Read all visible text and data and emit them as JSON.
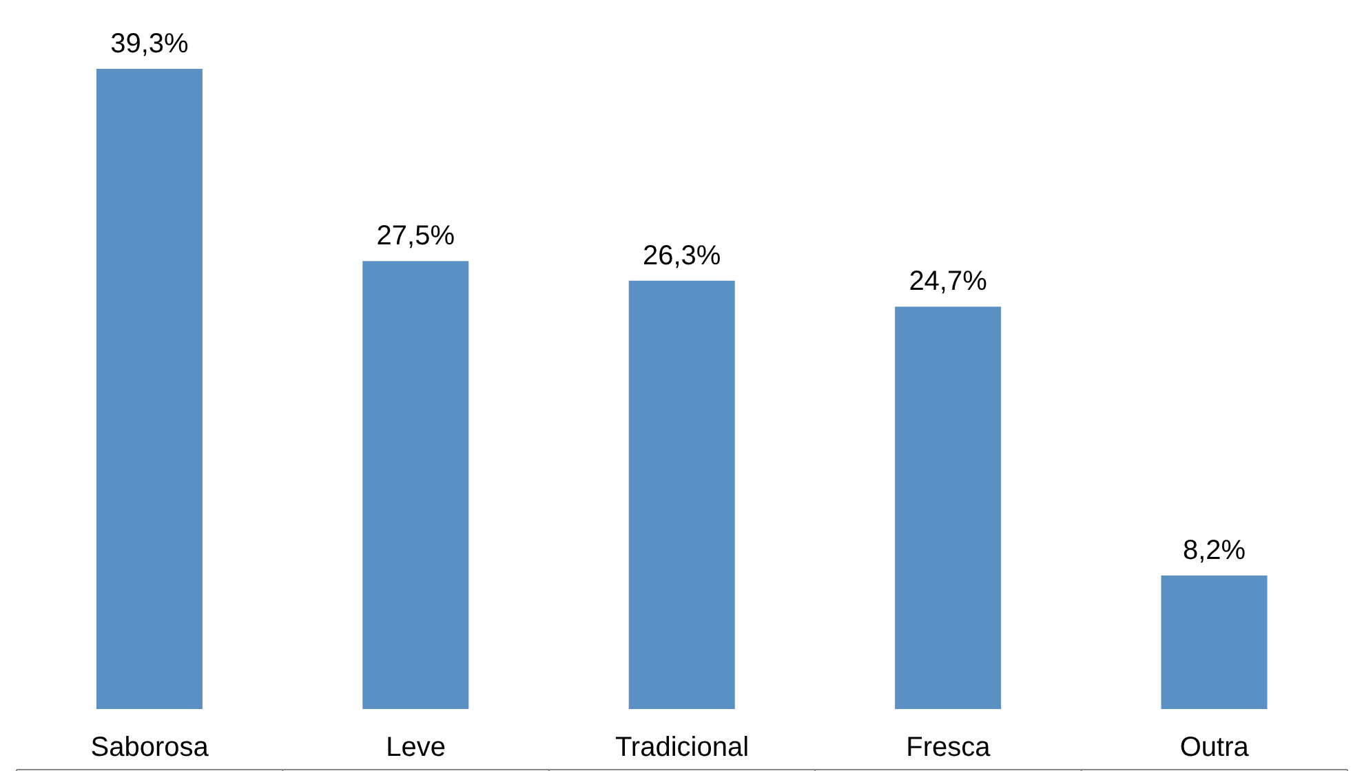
{
  "chart_data": {
    "type": "bar",
    "categories": [
      "Saborosa",
      "Leve",
      "Tradicional",
      "Fresca",
      "Outra"
    ],
    "values": [
      39.3,
      27.5,
      26.3,
      24.7,
      8.2
    ],
    "value_labels": [
      "39,3%",
      "27,5%",
      "26,3%",
      "24,7%",
      "8,2%"
    ],
    "color": "#5b90c5",
    "grid": false,
    "legend": false
  }
}
